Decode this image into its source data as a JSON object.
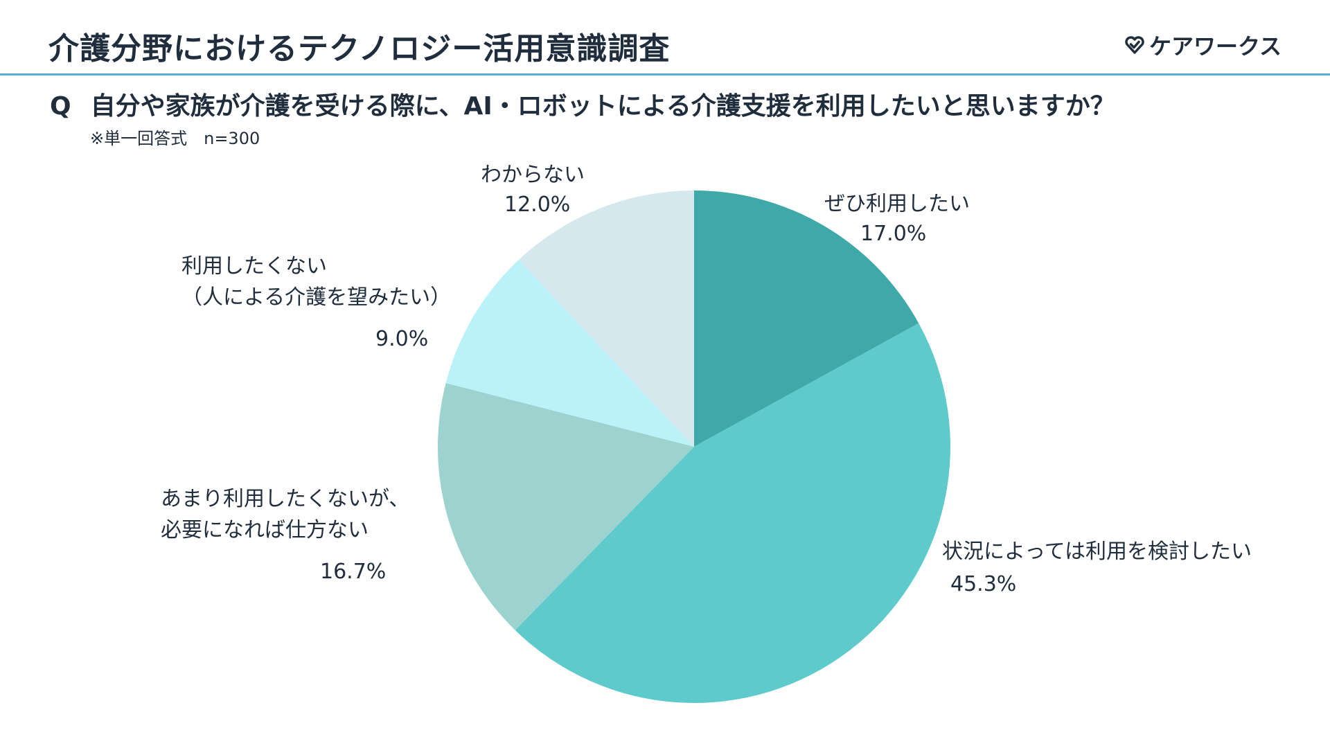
{
  "header": {
    "title": "介護分野におけるテクノロジー活用意識調査",
    "logo_text": "ケアワークス",
    "logo_icon": "heart-check-icon",
    "divider_color": "#5aa9dc"
  },
  "question": {
    "mark": "Q",
    "text": "自分や家族が介護を受ける際に、AI・ロボットによる介護支援を利用したいと思いますか？",
    "note": "※単一回答式　n=300"
  },
  "chart_data": {
    "type": "pie",
    "start_angle_deg": 0,
    "direction": "clockwise",
    "slices": [
      {
        "label": "ぜひ利用したい",
        "label_lines": [
          "ぜひ利用したい"
        ],
        "value": 17.0,
        "display": "17.0%",
        "color": "#3fa9aa"
      },
      {
        "label": "状況によっては利用を検討したい",
        "label_lines": [
          "状況によっては利用を検討したい"
        ],
        "value": 45.3,
        "display": "45.3%",
        "color": "#5ecacb"
      },
      {
        "label": "あまり利用したくないが、必要になれば仕方ない",
        "label_lines": [
          "あまり利用したくないが、",
          "必要になれば仕方ない"
        ],
        "value": 16.7,
        "display": "16.7%",
        "color": "#9dd3cf"
      },
      {
        "label": "利用したくない（人による介護を望みたい）",
        "label_lines": [
          "利用したくない",
          "（人による介護を望みたい）"
        ],
        "value": 9.0,
        "display": "9.0%",
        "color": "#bbf2f9"
      },
      {
        "label": "わからない",
        "label_lines": [
          "わからない"
        ],
        "value": 12.0,
        "display": "12.0%",
        "color": "#d5e8ed"
      }
    ]
  }
}
